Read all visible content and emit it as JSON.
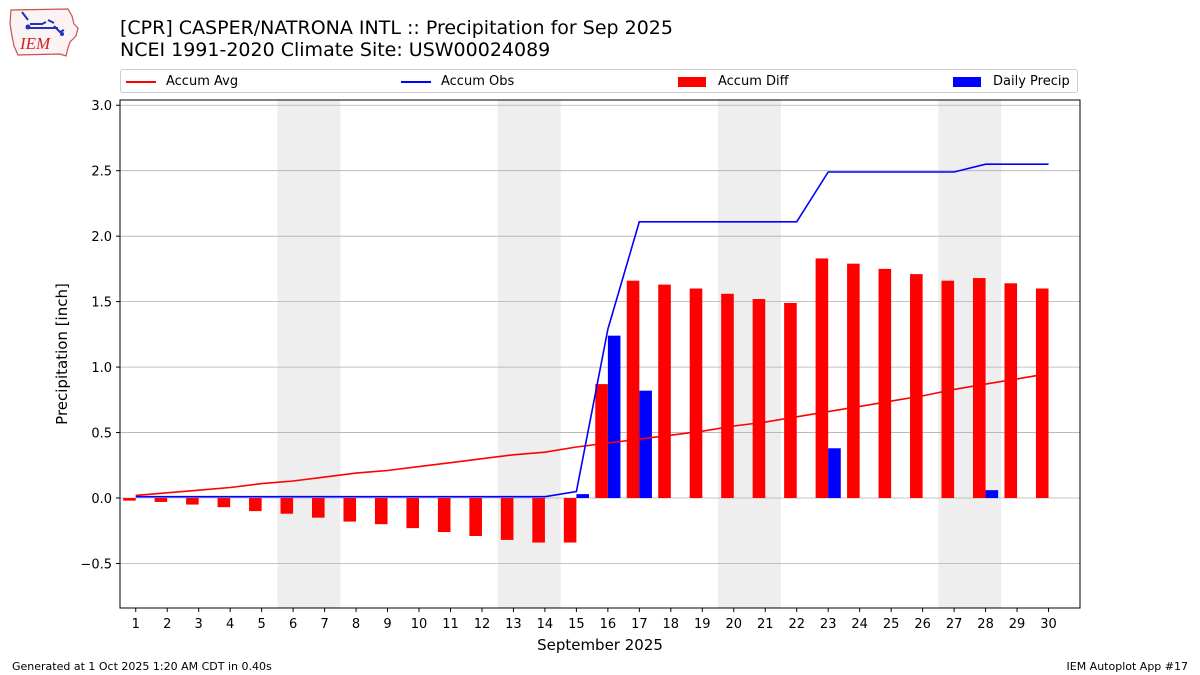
{
  "header": {
    "title_line1": "[CPR] CASPER/NATRONA INTL :: Precipitation for Sep 2025",
    "title_line2": "NCEI 1991-2020 Climate Site: USW00024089",
    "logo_text": "IEM"
  },
  "legend": {
    "accum_avg": "Accum Avg",
    "accum_obs": "Accum Obs",
    "accum_diff": "Accum Diff",
    "daily_precip": "Daily Precip"
  },
  "footer": {
    "generated": "Generated at 1 Oct 2025 1:20 AM CDT in 0.40s",
    "app": "IEM Autoplot App #17"
  },
  "colors": {
    "avg": "#ff0000",
    "obs": "#0000ff",
    "diff": "#ff0000",
    "daily": "#0000ff",
    "weekend": "#eeeeee",
    "grid": "#b0b0b0"
  },
  "chart_data": {
    "type": "bar",
    "title": "[CPR] CASPER/NATRONA INTL :: Precipitation for Sep 2025",
    "xlabel": "September 2025",
    "ylabel": "Precipitation [inch]",
    "ylim": [
      -0.84,
      3.04
    ],
    "yticks": [
      -0.5,
      0.0,
      0.5,
      1.0,
      1.5,
      2.0,
      2.5,
      3.0
    ],
    "ytick_labels": [
      "−0.5",
      "0.0",
      "0.5",
      "1.0",
      "1.5",
      "2.0",
      "2.5",
      "3.0"
    ],
    "categories": [
      "1",
      "2",
      "3",
      "4",
      "5",
      "6",
      "7",
      "8",
      "9",
      "10",
      "11",
      "12",
      "13",
      "14",
      "15",
      "16",
      "17",
      "18",
      "19",
      "20",
      "21",
      "22",
      "23",
      "24",
      "25",
      "26",
      "27",
      "28",
      "29",
      "30"
    ],
    "weekend_spans": [
      [
        6,
        7
      ],
      [
        13,
        14
      ],
      [
        20,
        21
      ],
      [
        27,
        28
      ]
    ],
    "grid": true,
    "legend_position": "top",
    "series": [
      {
        "name": "Accum Avg",
        "kind": "line",
        "values": [
          0.02,
          0.04,
          0.06,
          0.08,
          0.11,
          0.13,
          0.16,
          0.19,
          0.21,
          0.24,
          0.27,
          0.3,
          0.33,
          0.35,
          0.39,
          0.42,
          0.45,
          0.48,
          0.51,
          0.55,
          0.58,
          0.62,
          0.66,
          0.7,
          0.74,
          0.78,
          0.83,
          0.87,
          0.91,
          0.95
        ]
      },
      {
        "name": "Accum Obs",
        "kind": "line",
        "values": [
          0.01,
          0.01,
          0.01,
          0.01,
          0.01,
          0.01,
          0.01,
          0.01,
          0.01,
          0.01,
          0.01,
          0.01,
          0.01,
          0.01,
          0.05,
          1.29,
          2.11,
          2.11,
          2.11,
          2.11,
          2.11,
          2.11,
          2.49,
          2.49,
          2.49,
          2.49,
          2.49,
          2.55,
          2.55,
          2.55
        ]
      },
      {
        "name": "Accum Diff",
        "kind": "bar",
        "values": [
          -0.02,
          -0.03,
          -0.05,
          -0.07,
          -0.1,
          -0.12,
          -0.15,
          -0.18,
          -0.2,
          -0.23,
          -0.26,
          -0.29,
          -0.32,
          -0.34,
          -0.34,
          0.87,
          1.66,
          1.63,
          1.6,
          1.56,
          1.52,
          1.49,
          1.83,
          1.79,
          1.75,
          1.71,
          1.66,
          1.68,
          1.64,
          1.6
        ]
      },
      {
        "name": "Daily Precip",
        "kind": "bar",
        "values": [
          0,
          0,
          0,
          0,
          0,
          0,
          0,
          0,
          0,
          0,
          0,
          0,
          0,
          0,
          0.03,
          1.24,
          0.82,
          0,
          0,
          0,
          0,
          0,
          0.38,
          0,
          0,
          0,
          0,
          0.06,
          0,
          0
        ]
      }
    ]
  }
}
